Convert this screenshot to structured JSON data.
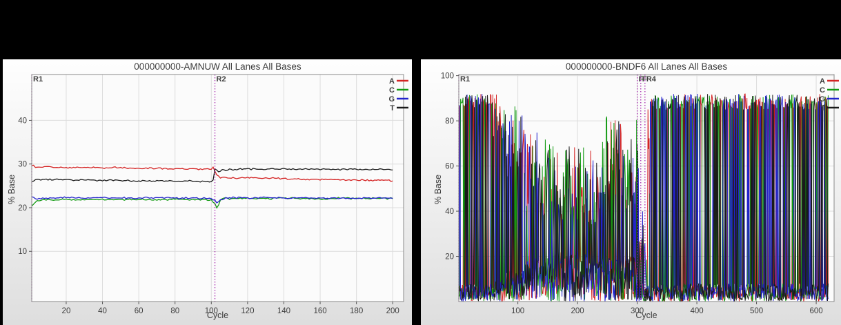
{
  "page": {
    "background": "#000000"
  },
  "chart_data": [
    {
      "type": "line",
      "title": "000000000-AMNUW All Lanes All Bases",
      "xlabel": "Cycle",
      "ylabel": "% Base",
      "xlim": [
        1,
        206
      ],
      "ylim": [
        -1.5,
        50.5
      ],
      "data_range": [
        1,
        200
      ],
      "x_ticks": [
        20,
        40,
        60,
        80,
        100,
        120,
        140,
        160,
        180,
        200
      ],
      "y_ticks": [
        10,
        20,
        30,
        40
      ],
      "grid": true,
      "legend_position": "top-right",
      "noise_amplitude": 0.22,
      "seed": 11,
      "plot_bg": "#fbfbfb",
      "grid_color": "#dcdcdc",
      "border_color": "#8a8a8a",
      "marker_color": "#a018a8",
      "markers": [
        {
          "label": "R1",
          "cycle": 1
        },
        {
          "label": "R2",
          "cycle": 102
        }
      ],
      "series": [
        {
          "name": "A",
          "color": "#d42424",
          "points": [
            [
              1,
              29.8
            ],
            [
              4,
              29.2
            ],
            [
              10,
              29.4
            ],
            [
              20,
              29.2
            ],
            [
              30,
              29.3
            ],
            [
              40,
              29.1
            ],
            [
              50,
              29.2
            ],
            [
              60,
              29.0
            ],
            [
              70,
              29.1
            ],
            [
              80,
              28.9
            ],
            [
              90,
              28.9
            ],
            [
              100,
              28.8
            ],
            [
              101,
              29.2
            ],
            [
              103,
              27.6
            ],
            [
              105,
              26.9
            ],
            [
              110,
              26.8
            ],
            [
              120,
              26.9
            ],
            [
              130,
              26.7
            ],
            [
              140,
              26.7
            ],
            [
              150,
              26.5
            ],
            [
              160,
              26.5
            ],
            [
              170,
              26.4
            ],
            [
              180,
              26.3
            ],
            [
              190,
              26.3
            ],
            [
              200,
              26.2
            ]
          ]
        },
        {
          "name": "C",
          "color": "#119911",
          "points": [
            [
              1,
              20.5
            ],
            [
              4,
              21.7
            ],
            [
              10,
              21.8
            ],
            [
              20,
              21.9
            ],
            [
              30,
              21.8
            ],
            [
              40,
              21.9
            ],
            [
              50,
              21.8
            ],
            [
              60,
              21.9
            ],
            [
              70,
              21.8
            ],
            [
              80,
              21.9
            ],
            [
              90,
              21.8
            ],
            [
              100,
              21.8
            ],
            [
              102,
              20.9
            ],
            [
              103,
              19.8
            ],
            [
              105,
              21.6
            ],
            [
              107,
              22.4
            ],
            [
              110,
              22.0
            ],
            [
              120,
              22.2
            ],
            [
              130,
              22.1
            ],
            [
              140,
              22.2
            ],
            [
              150,
              22.1
            ],
            [
              160,
              22.0
            ],
            [
              170,
              22.2
            ],
            [
              180,
              22.1
            ],
            [
              190,
              22.1
            ],
            [
              200,
              22.1
            ]
          ]
        },
        {
          "name": "G",
          "color": "#2222cc",
          "points": [
            [
              1,
              22.5
            ],
            [
              4,
              22.0
            ],
            [
              10,
              22.2
            ],
            [
              20,
              22.3
            ],
            [
              30,
              22.2
            ],
            [
              40,
              22.3
            ],
            [
              50,
              22.2
            ],
            [
              60,
              22.2
            ],
            [
              70,
              22.3
            ],
            [
              80,
              22.2
            ],
            [
              90,
              22.2
            ],
            [
              100,
              22.1
            ],
            [
              102,
              21.6
            ],
            [
              103,
              21.1
            ],
            [
              105,
              21.9
            ],
            [
              110,
              22.3
            ],
            [
              120,
              22.2
            ],
            [
              130,
              22.3
            ],
            [
              140,
              22.2
            ],
            [
              150,
              22.3
            ],
            [
              160,
              22.2
            ],
            [
              170,
              22.1
            ],
            [
              180,
              22.2
            ],
            [
              190,
              22.2
            ],
            [
              200,
              22.2
            ]
          ]
        },
        {
          "name": "T",
          "color": "#1a1a1a",
          "points": [
            [
              1,
              26.1
            ],
            [
              4,
              26.5
            ],
            [
              10,
              26.5
            ],
            [
              20,
              26.3
            ],
            [
              30,
              26.4
            ],
            [
              40,
              26.2
            ],
            [
              50,
              26.3
            ],
            [
              60,
              26.1
            ],
            [
              70,
              26.2
            ],
            [
              80,
              26.1
            ],
            [
              90,
              26.1
            ],
            [
              100,
              26.0
            ],
            [
              101,
              26.3
            ],
            [
              102,
              29.0
            ],
            [
              104,
              28.3
            ],
            [
              106,
              28.6
            ],
            [
              110,
              28.7
            ],
            [
              120,
              28.9
            ],
            [
              130,
              28.8
            ],
            [
              140,
              28.9
            ],
            [
              150,
              28.8
            ],
            [
              160,
              28.8
            ],
            [
              170,
              28.8
            ],
            [
              180,
              28.8
            ],
            [
              190,
              28.7
            ],
            [
              200,
              28.8
            ]
          ]
        }
      ]
    },
    {
      "type": "line",
      "title": "000000000-BNDF6 All Lanes All Bases",
      "xlabel": "Cycle",
      "ylabel": "% Base",
      "xlim": [
        1,
        630
      ],
      "ylim": [
        0,
        100.5
      ],
      "data_range": [
        1,
        620
      ],
      "x_ticks": [
        100,
        200,
        300,
        400,
        500,
        600
      ],
      "y_ticks": [
        20,
        40,
        60,
        80,
        100
      ],
      "grid": true,
      "legend_position": "top-right",
      "seed": 13,
      "plot_bg": "#fbfbfb",
      "grid_color": "#dcdcdc",
      "border_color": "#8a8a8a",
      "marker_color": "#a018a8",
      "markers": [
        {
          "label": "R1",
          "cycle": 1
        },
        {
          "label": "F",
          "cycle": 300
        },
        {
          "label": "F",
          "cycle": 306
        },
        {
          "label": "R4",
          "cycle": 313
        }
      ],
      "series": [
        {
          "name": "A",
          "color": "#d42424"
        },
        {
          "name": "C",
          "color": "#119911"
        },
        {
          "name": "G",
          "color": "#2222cc"
        },
        {
          "name": "T",
          "color": "#1a1a1a"
        }
      ],
      "noise_profile": [
        {
          "from": 1,
          "to": 58,
          "peak_min": 86,
          "peak_max": 92,
          "other_max": 8
        },
        {
          "from": 58,
          "to": 80,
          "peak_min": 70,
          "peak_max": 92,
          "other_max": 10
        },
        {
          "from": 80,
          "to": 112,
          "peak_min": 52,
          "peak_max": 88,
          "other_max": 14
        },
        {
          "from": 112,
          "to": 155,
          "peak_min": 38,
          "peak_max": 75,
          "other_max": 20
        },
        {
          "from": 155,
          "to": 235,
          "peak_min": 34,
          "peak_max": 70,
          "other_max": 22
        },
        {
          "from": 235,
          "to": 302,
          "peak_min": 40,
          "peak_max": 82,
          "other_max": 20
        },
        {
          "from": 302,
          "to": 310,
          "peak_min": 15,
          "peak_max": 45,
          "other_max": 10
        },
        {
          "from": 310,
          "to": 317,
          "peak_min": 4,
          "peak_max": 34,
          "other_max": 6
        },
        {
          "from": 317,
          "to": 321,
          "peak_min": 40,
          "peak_max": 88,
          "other_max": 8
        },
        {
          "from": 321,
          "to": 620,
          "peak_min": 85,
          "peak_max": 92,
          "other_max": 8
        }
      ]
    }
  ]
}
